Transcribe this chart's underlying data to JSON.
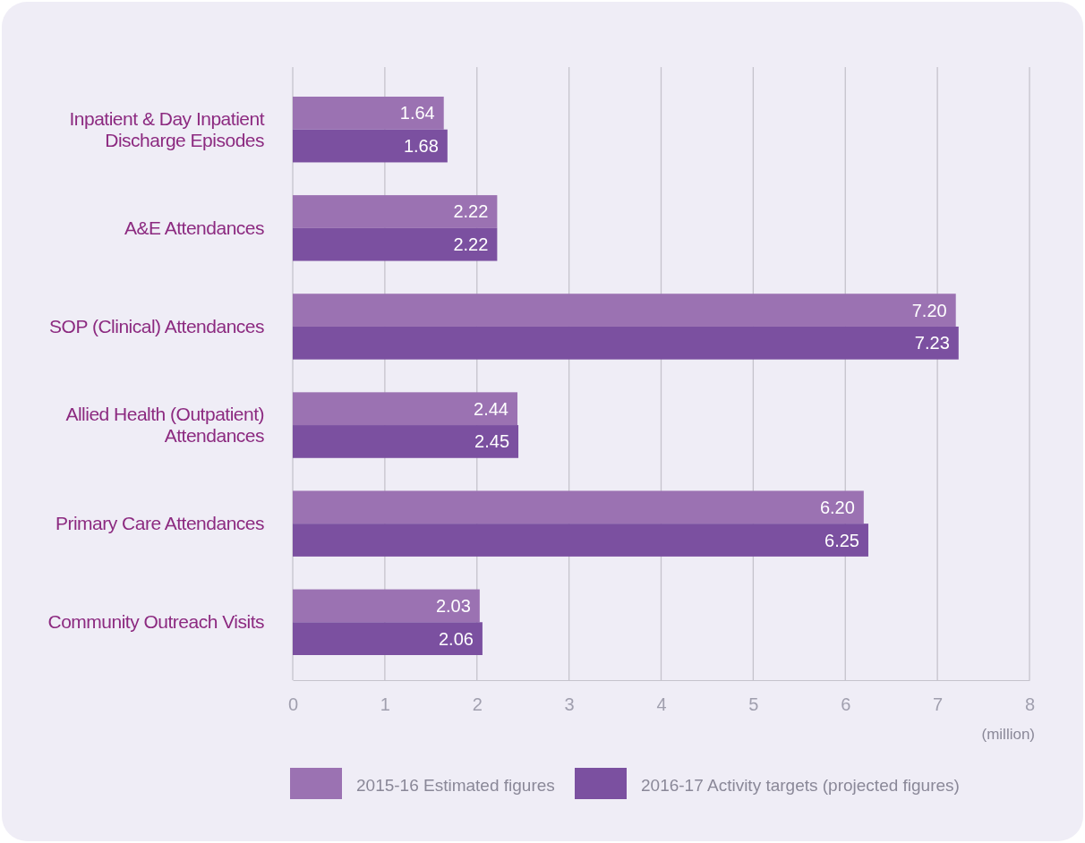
{
  "chart_data": {
    "type": "bar",
    "orientation": "horizontal",
    "categories": [
      "Inpatient & Day Inpatient Discharge Episodes",
      "A&E Attendances",
      "SOP (Clinical) Attendances",
      "Allied Health (Outpatient) Attendances",
      "Primary Care Attendances",
      "Community Outreach Visits"
    ],
    "series": [
      {
        "name": "2015-16 Estimated figures",
        "color": "#9b72b2",
        "values": [
          1.64,
          2.22,
          7.2,
          2.44,
          6.2,
          2.03
        ],
        "value_labels": [
          "1.64",
          "2.22",
          "7.20",
          "2.44",
          "6.20",
          "2.03"
        ]
      },
      {
        "name": "2016-17 Activity targets (projected figures)",
        "color": "#7b50a0",
        "values": [
          1.68,
          2.22,
          7.23,
          2.45,
          6.25,
          2.06
        ],
        "value_labels": [
          "1.68",
          "2.22",
          "7.23",
          "2.45",
          "6.25",
          "2.06"
        ]
      }
    ],
    "xlabel": "(million)",
    "xlim": [
      0,
      8
    ],
    "xticks": [
      0,
      1,
      2,
      3,
      4,
      5,
      6,
      7,
      8
    ],
    "grid": "x",
    "legend": "bottom"
  }
}
